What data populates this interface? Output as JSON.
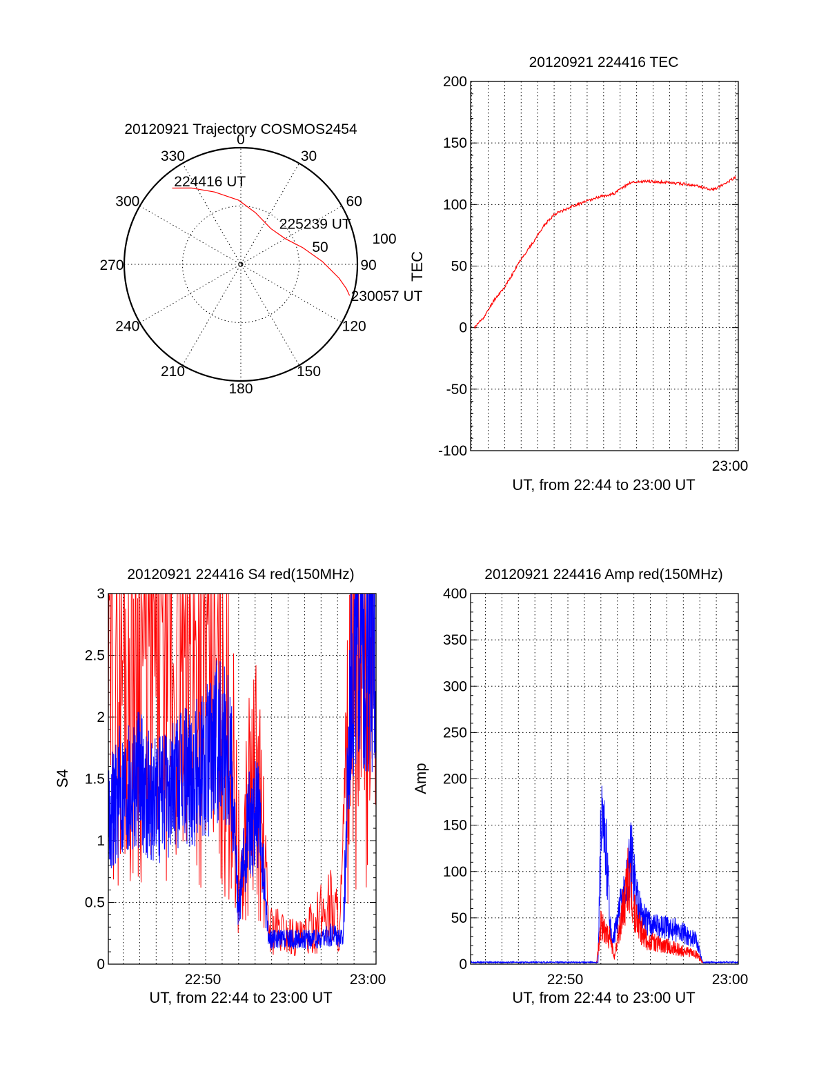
{
  "chart_data": [
    {
      "type": "polar",
      "title": "20120921 Trajectory COSMOS2454",
      "angle_ticks": [
        "0",
        "30",
        "60",
        "90",
        "120",
        "150",
        "180",
        "210",
        "240",
        "270",
        "300",
        "330"
      ],
      "radial_ticks": [
        "50",
        "100"
      ],
      "radial_max": 100,
      "series": [
        {
          "color": "#ff0000",
          "points": [
            [
              318,
              88
            ],
            [
              327,
              78
            ],
            [
              340,
              66
            ],
            [
              358,
              55
            ],
            [
              16,
              46
            ],
            [
              40,
              40
            ],
            [
              60,
              44
            ],
            [
              75,
              55
            ],
            [
              88,
              70
            ],
            [
              98,
              85
            ],
            [
              103,
              93
            ],
            [
              106,
              97
            ]
          ]
        }
      ],
      "annotations": [
        {
          "text": "224416 UT",
          "az": 320,
          "r": 89
        },
        {
          "text": "225239 UT",
          "az": 57,
          "r": 45
        },
        {
          "text": "230057 UT",
          "az": 106,
          "r": 97
        }
      ]
    },
    {
      "type": "line",
      "title": "20120921 224416 TEC",
      "ylabel": "TEC",
      "xlabel": "UT, from 22:44 to 23:00 UT",
      "xlim": [
        "22:44:16",
        "23:00:30"
      ],
      "ylim": [
        -100,
        200
      ],
      "yticks": [
        "-100",
        "-50",
        "0",
        "50",
        "100",
        "150",
        "200"
      ],
      "xticks": [
        {
          "t": "23:00:00",
          "label": "23:00"
        }
      ],
      "xgrid": [
        "22:44:20",
        "22:45:20",
        "22:46:20",
        "22:47:20",
        "22:48:20",
        "22:49:20",
        "22:50:20",
        "22:51:20",
        "22:52:20",
        "22:53:20",
        "22:54:20",
        "22:55:20",
        "22:56:20",
        "22:57:20",
        "22:58:20",
        "22:59:20",
        "23:00:20"
      ],
      "series": [
        {
          "color": "#ff0000",
          "noise": 0.8,
          "x": [
            "22:44:30",
            "22:45:10",
            "22:45:40",
            "22:46:20",
            "22:46:40",
            "22:47:20",
            "22:48:00",
            "22:48:40",
            "22:49:20",
            "22:49:50",
            "22:50:30",
            "22:51:10",
            "22:52:00",
            "22:53:00",
            "22:53:30",
            "22:54:00",
            "22:55:00",
            "22:56:00",
            "22:57:00",
            "22:58:00",
            "22:59:00",
            "22:59:40",
            "23:00:20"
          ],
          "y": [
            0,
            10,
            22,
            33,
            40,
            56,
            68,
            82,
            92,
            95,
            99,
            102,
            106,
            109,
            114,
            118,
            119,
            118,
            117,
            115,
            112,
            117,
            122
          ]
        }
      ]
    },
    {
      "type": "line",
      "title": "20120921 224416 S4 red(150MHz)",
      "ylabel": "S4",
      "xlabel": "UT, from 22:44 to 23:00 UT",
      "xlim": [
        "22:44:16",
        "23:00:30"
      ],
      "ylim": [
        0,
        3
      ],
      "yticks": [
        "0",
        "0.5",
        "1",
        "1.5",
        "2",
        "2.5",
        "3"
      ],
      "xticks": [
        {
          "t": "22:50:00",
          "label": "22:50"
        },
        {
          "t": "23:00:00",
          "label": "23:00"
        }
      ],
      "xgrid": [
        "22:45:10",
        "22:46:10",
        "22:47:10",
        "22:48:10",
        "22:49:10",
        "22:50:10",
        "22:51:10",
        "22:52:10",
        "22:53:10",
        "22:54:10",
        "22:55:10",
        "22:56:10",
        "22:57:10",
        "22:58:10",
        "22:59:10"
      ],
      "series": [
        {
          "color": "#ff0000",
          "noise": 0.75,
          "x": [
            "22:44:16",
            "22:46:00",
            "22:48:00",
            "22:50:00",
            "22:51:40",
            "22:52:20",
            "22:52:40",
            "22:53:20",
            "22:54:00",
            "22:55:00",
            "22:56:00",
            "22:57:00",
            "22:57:40",
            "22:58:20",
            "22:59:00",
            "22:59:40",
            "23:00:30"
          ],
          "y": [
            2.5,
            2.6,
            2.5,
            2.4,
            1.9,
            0.5,
            1.3,
            1.5,
            0.3,
            0.25,
            0.2,
            0.35,
            0.5,
            0.35,
            2.2,
            2.3,
            2.3
          ]
        },
        {
          "color": "#0000ff",
          "noise": 0.4,
          "x": [
            "22:44:16",
            "22:45:00",
            "22:46:00",
            "22:47:00",
            "22:48:00",
            "22:49:00",
            "22:50:00",
            "22:51:00",
            "22:51:40",
            "22:52:10",
            "22:52:40",
            "22:53:20",
            "22:54:00",
            "22:55:00",
            "22:56:00",
            "22:57:00",
            "22:58:00",
            "22:58:30",
            "22:59:00",
            "22:59:40",
            "23:00:30"
          ],
          "y": [
            1.2,
            1.4,
            1.5,
            1.3,
            1.4,
            1.5,
            1.6,
            1.8,
            1.8,
            0.4,
            1.1,
            1.2,
            0.2,
            0.2,
            0.2,
            0.2,
            0.25,
            0.2,
            2.5,
            2.6,
            2.5
          ]
        }
      ]
    },
    {
      "type": "line",
      "title": "20120921 224416 Amp red(150MHz)",
      "ylabel": "Amp",
      "xlabel": "UT, from 22:44 to 23:00 UT",
      "xlim": [
        "22:44:16",
        "23:00:30"
      ],
      "ylim": [
        0,
        400
      ],
      "yticks": [
        "0",
        "50",
        "100",
        "150",
        "200",
        "250",
        "300",
        "350",
        "400"
      ],
      "xticks": [
        {
          "t": "22:50:00",
          "label": "22:50"
        },
        {
          "t": "23:00:00",
          "label": "23:00"
        }
      ],
      "xgrid": [
        "22:45:10",
        "22:46:10",
        "22:47:10",
        "22:48:10",
        "22:49:10",
        "22:50:10",
        "22:51:10",
        "22:52:10",
        "22:53:10",
        "22:54:10",
        "22:55:10",
        "22:56:10",
        "22:57:10",
        "22:58:10",
        "22:59:10"
      ],
      "series": [
        {
          "color": "#0000ff",
          "noise": 0.35,
          "x": [
            "22:44:16",
            "22:51:00",
            "22:52:00",
            "22:52:10",
            "22:52:30",
            "22:52:50",
            "22:53:20",
            "22:53:40",
            "22:54:00",
            "22:54:30",
            "22:55:00",
            "22:56:00",
            "22:57:00",
            "22:58:00",
            "22:58:20",
            "23:00:30"
          ],
          "y": [
            2,
            2,
            2,
            150,
            120,
            20,
            60,
            80,
            120,
            60,
            45,
            40,
            35,
            25,
            2,
            2
          ]
        },
        {
          "color": "#ff0000",
          "noise": 0.45,
          "x": [
            "22:51:55",
            "22:52:10",
            "22:52:40",
            "22:53:00",
            "22:53:30",
            "22:53:50",
            "22:54:20",
            "22:55:00",
            "22:56:00",
            "22:57:00",
            "22:58:00",
            "22:58:20"
          ],
          "y": [
            2,
            40,
            30,
            8,
            60,
            90,
            45,
            25,
            20,
            15,
            10,
            2
          ]
        }
      ]
    }
  ]
}
